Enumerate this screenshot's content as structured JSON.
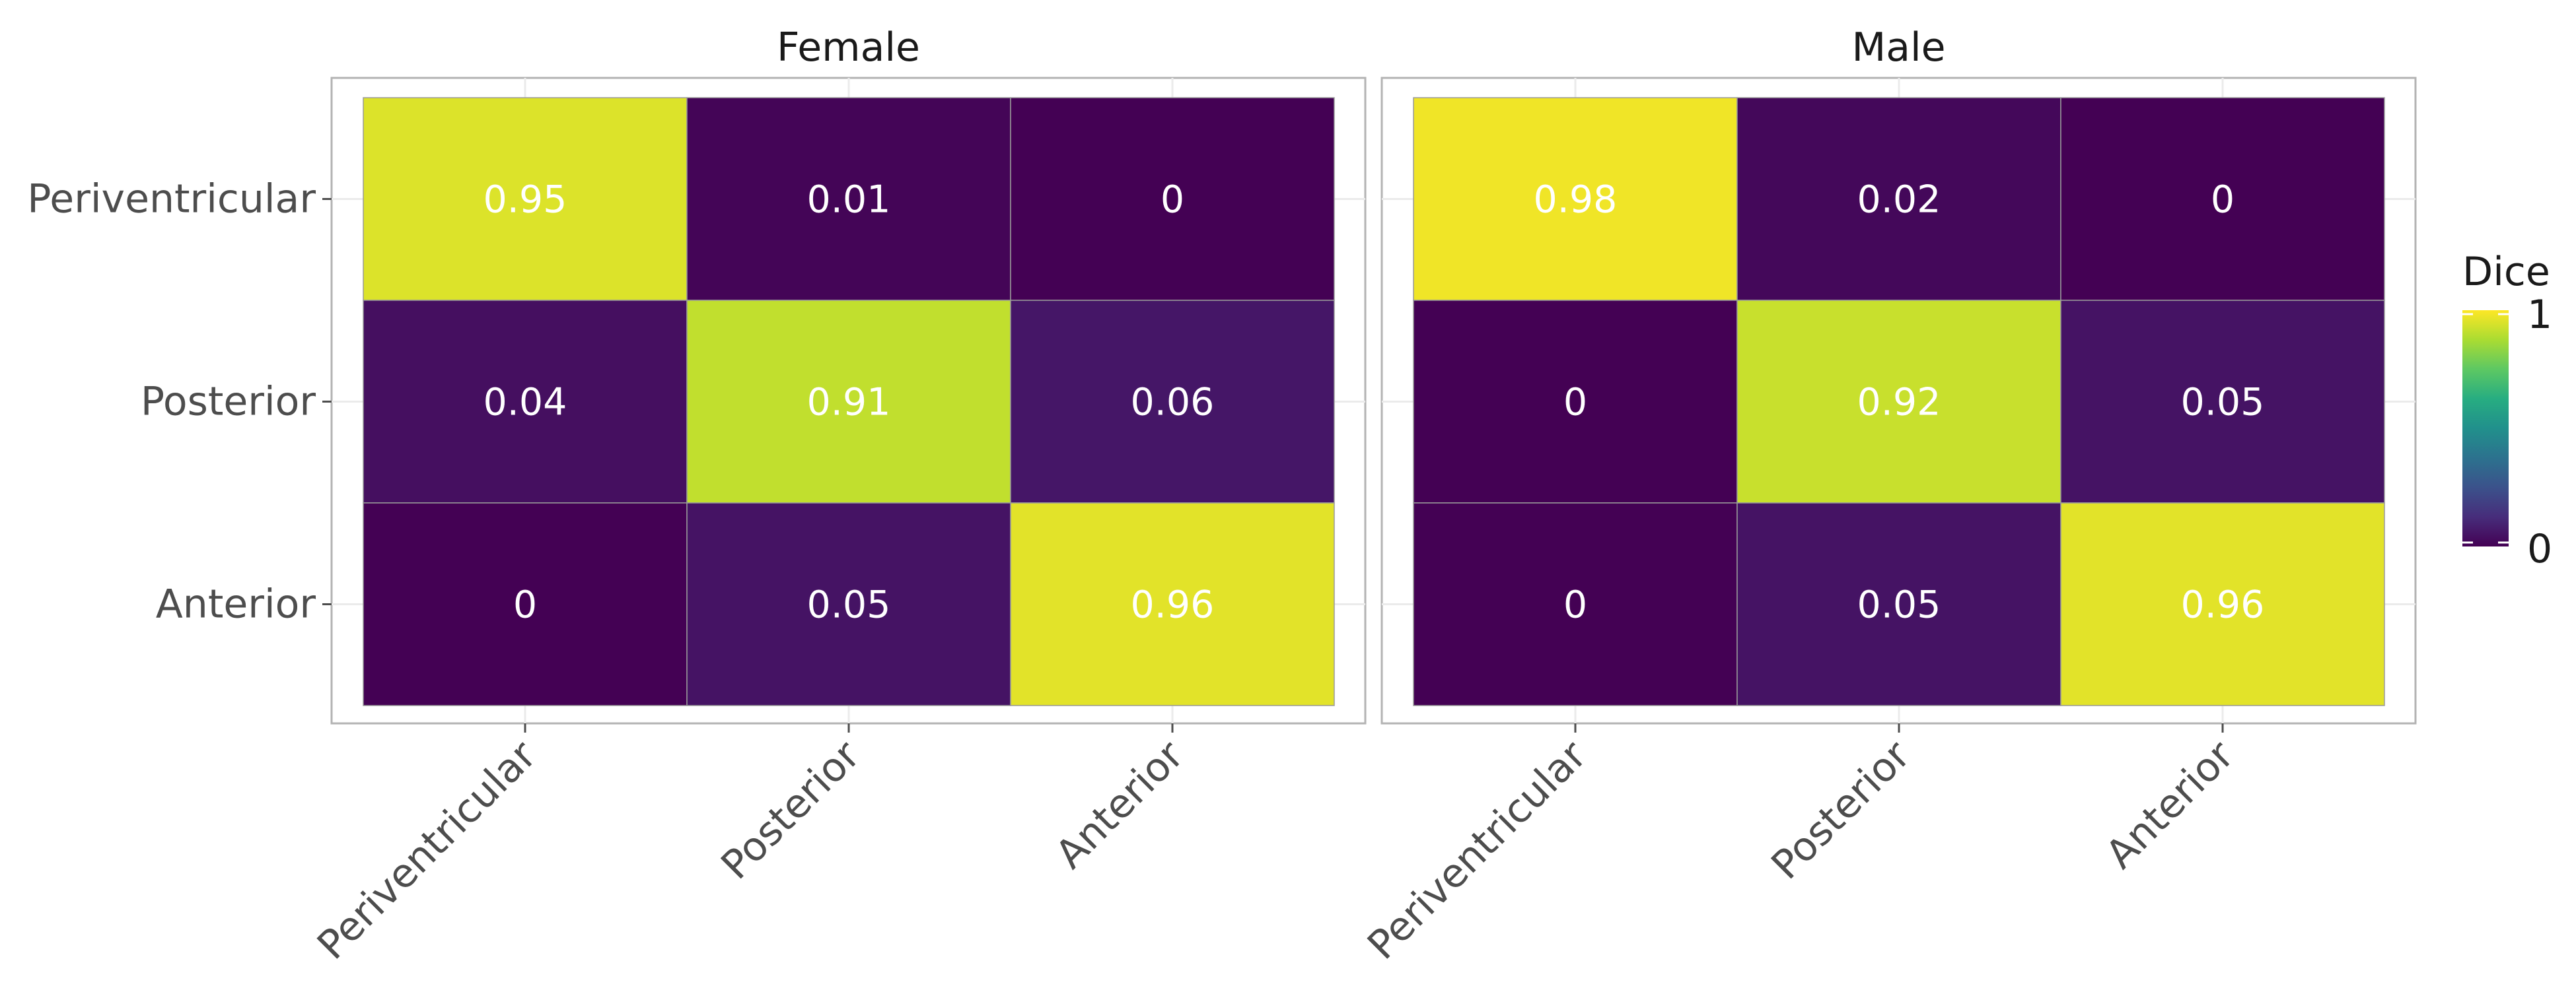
{
  "chart_data": {
    "type": "heatmap",
    "x_categories": [
      "Periventricular",
      "Posterior",
      "Anterior"
    ],
    "y_categories": [
      "Periventricular",
      "Posterior",
      "Anterior"
    ],
    "panels": [
      {
        "title": "Female",
        "values": [
          [
            0.95,
            0.01,
            0
          ],
          [
            0.04,
            0.91,
            0.06
          ],
          [
            0,
            0.05,
            0.96
          ]
        ],
        "labels": [
          [
            "0.95",
            "0.01",
            "0"
          ],
          [
            "0.04",
            "0.91",
            "0.06"
          ],
          [
            "0",
            "0.05",
            "0.96"
          ]
        ]
      },
      {
        "title": "Male",
        "values": [
          [
            0.98,
            0.02,
            0
          ],
          [
            0,
            0.92,
            0.05
          ],
          [
            0,
            0.05,
            0.96
          ]
        ],
        "labels": [
          [
            "0.98",
            "0.02",
            "0"
          ],
          [
            "0",
            "0.92",
            "0.05"
          ],
          [
            "0",
            "0.05",
            "0.96"
          ]
        ]
      }
    ],
    "legend": {
      "title": "Dice",
      "range": [
        0,
        1
      ],
      "ticks": [
        "1",
        "0"
      ],
      "colormap": "viridis",
      "placement": "right"
    },
    "grid": true,
    "colors": {
      "low": "#440154",
      "mid": "#21908C",
      "high": "#FDE725",
      "panel_border": "#b3b3b3",
      "gridline": "#ebebeb",
      "cell_border": "#9a9a9a"
    }
  }
}
